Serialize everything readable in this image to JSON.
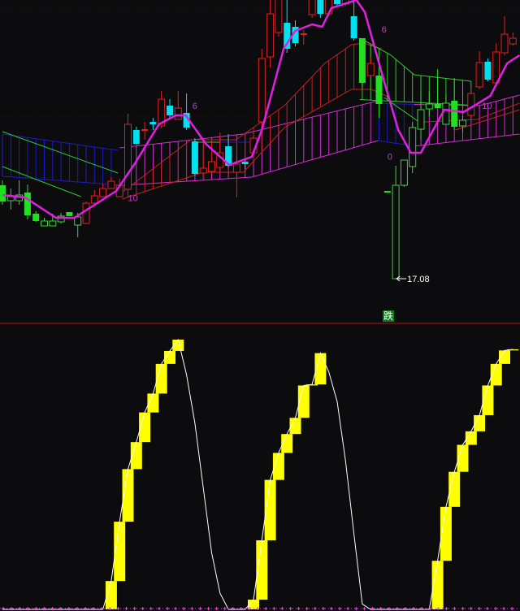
{
  "chart_data": [
    {
      "type": "candlestick",
      "title": "",
      "price_range": [
        17.0,
        30.8
      ],
      "candle_kinds": {
        "r": "red hollow (up)",
        "c": "cyan filled (down)",
        "g": "green filled (down)",
        "gh": "green hollow (up)"
      },
      "candles": [
        [
          21.68,
          21.92,
          20.72,
          20.88,
          "g"
        ],
        [
          20.92,
          21.52,
          20.48,
          21.12,
          "gh"
        ],
        [
          20.92,
          21.92,
          20.72,
          21.2,
          "gh"
        ],
        [
          21.32,
          21.72,
          20.0,
          20.2,
          "g"
        ],
        [
          20.28,
          20.4,
          19.88,
          19.92,
          "g"
        ],
        [
          19.68,
          20.08,
          19.68,
          19.92,
          "gh"
        ],
        [
          19.68,
          20.28,
          19.68,
          19.92,
          "gh"
        ],
        [
          19.88,
          20.32,
          19.8,
          20.16,
          "gh"
        ],
        [
          20.36,
          20.36,
          20.16,
          20.16,
          "g"
        ],
        [
          19.72,
          20.32,
          19.12,
          20.12,
          "gh"
        ],
        [
          19.8,
          20.88,
          19.76,
          20.8,
          "r"
        ],
        [
          20.8,
          21.44,
          20.8,
          21.16,
          "r"
        ],
        [
          21.12,
          21.76,
          21.12,
          21.52,
          "r"
        ],
        [
          21.52,
          22.08,
          21.52,
          21.88,
          "r"
        ],
        [
          21.12,
          22.0,
          21.12,
          21.68,
          "r"
        ],
        [
          21.48,
          25.2,
          21.28,
          24.68,
          "r"
        ],
        [
          24.4,
          24.56,
          23.68,
          23.72,
          "c"
        ],
        [
          24.36,
          24.8,
          23.92,
          24.4,
          "r"
        ],
        [
          24.8,
          25.0,
          24.4,
          24.68,
          "c"
        ],
        [
          24.6,
          26.32,
          24.48,
          25.92,
          "r"
        ],
        [
          25.6,
          25.92,
          24.96,
          25.12,
          "c"
        ],
        [
          24.92,
          26.32,
          24.92,
          25.48,
          "r"
        ],
        [
          25.24,
          26.2,
          24.4,
          24.52,
          "c"
        ],
        [
          23.84,
          24.0,
          22.16,
          22.24,
          "c"
        ],
        [
          22.28,
          22.6,
          22.08,
          22.52,
          "r"
        ],
        [
          22.36,
          23.0,
          22.28,
          22.84,
          "r"
        ],
        [
          22.56,
          24.28,
          22.4,
          23.28,
          "r"
        ],
        [
          23.6,
          24.2,
          22.56,
          22.64,
          "c"
        ],
        [
          22.32,
          23.12,
          21.08,
          22.72,
          "r"
        ],
        [
          22.84,
          23.0,
          22.48,
          22.72,
          "c"
        ],
        [
          23.28,
          24.32,
          23.2,
          24.0,
          "r"
        ],
        [
          24.8,
          28.4,
          24.52,
          27.92,
          "r"
        ],
        [
          28.0,
          30.8,
          27.48,
          30.12,
          "r"
        ],
        [
          29.2,
          31.5,
          29.0,
          31.0,
          "r"
        ],
        [
          29.68,
          30.8,
          28.2,
          28.4,
          "c"
        ],
        [
          29.48,
          29.8,
          28.52,
          28.68,
          "c"
        ],
        [
          29.08,
          29.32,
          28.6,
          29.12,
          "r"
        ],
        [
          30.08,
          31.5,
          29.92,
          31.0,
          "r"
        ],
        [
          31.0,
          31.5,
          29.92,
          30.12,
          "c"
        ],
        [
          30.12,
          31.5,
          30.0,
          31.2,
          "r"
        ],
        [
          31.2,
          31.5,
          30.5,
          30.6,
          "c"
        ],
        [
          30.6,
          31.5,
          30.5,
          31.0,
          "r"
        ],
        [
          30.0,
          31.0,
          28.8,
          28.92,
          "c"
        ],
        [
          28.92,
          28.92,
          26.52,
          26.72,
          "g"
        ],
        [
          27.08,
          28.0,
          27.0,
          27.68,
          "r"
        ],
        [
          27.08,
          27.48,
          25.0,
          25.68,
          "g"
        ],
        [
          21.36,
          21.4,
          21.32,
          21.36,
          "g"
        ],
        [
          17.08,
          22.64,
          17.08,
          21.68,
          "gh"
        ],
        [
          21.68,
          22.92,
          21.6,
          22.92,
          "gh"
        ],
        [
          22.6,
          24.8,
          22.28,
          24.52,
          "gh"
        ],
        [
          24.44,
          26.28,
          23.92,
          25.4,
          "gh"
        ],
        [
          25.44,
          26.28,
          25.08,
          25.68,
          "gh"
        ],
        [
          25.68,
          27.4,
          25.48,
          25.48,
          "g"
        ],
        [
          24.68,
          26.12,
          24.68,
          25.72,
          "gh"
        ],
        [
          25.84,
          26.96,
          24.4,
          24.56,
          "g"
        ],
        [
          24.6,
          25.08,
          24.28,
          24.88,
          "gh"
        ],
        [
          25.12,
          26.4,
          25.0,
          26.2,
          "r"
        ],
        [
          26.52,
          28.28,
          26.4,
          27.72,
          "r"
        ],
        [
          27.76,
          27.92,
          26.8,
          26.88,
          "c"
        ],
        [
          26.72,
          28.68,
          26.72,
          28.24,
          "r"
        ],
        [
          28.2,
          30.0,
          28.08,
          29.12,
          "r"
        ],
        [
          28.64,
          29.2,
          28.56,
          28.92,
          "r"
        ]
      ],
      "ribbons": [
        {
          "color": "#1c1cc8",
          "top": [
            [
              0,
              24.2
            ],
            [
              13.8,
              23.4
            ]
          ],
          "bottom": [
            [
              0,
              22.12
            ],
            [
              14.3,
              21.68
            ]
          ]
        },
        {
          "color": "#d030d0",
          "top": [
            [
              14,
              23.52
            ],
            [
              28.8,
              24.2
            ],
            [
              44.9,
              25.84
            ]
          ],
          "bottom": [
            [
              14.3,
              21.68
            ],
            [
              29.8,
              22.08
            ],
            [
              44.9,
              23.88
            ]
          ]
        },
        {
          "color": "#1c1cc8",
          "top": [
            [
              44.9,
              25.72
            ],
            [
              49.2,
              25.66
            ]
          ],
          "bottom": [
            [
              44.9,
              23.88
            ],
            [
              49.2,
              23.6
            ]
          ]
        },
        {
          "color": "#d030d0",
          "top": [
            [
              49.2,
              25.66
            ],
            [
              57,
              25.6
            ],
            [
              61.8,
              26.12
            ]
          ],
          "bottom": [
            [
              49.2,
              23.6
            ],
            [
              61.8,
              24.2
            ]
          ]
        },
        {
          "color": "#c82020",
          "top": [
            [
              14.3,
              21.32
            ],
            [
              22.5,
              23.92
            ],
            [
              27.9,
              23.92
            ],
            [
              33.7,
              25.6
            ],
            [
              38.5,
              27.68
            ],
            [
              41.7,
              28.6
            ],
            [
              43.1,
              28.68
            ],
            [
              45.3,
              28.4
            ]
          ],
          "bottom": [
            [
              14.3,
              21.0
            ],
            [
              24,
              22.32
            ],
            [
              28.8,
              22.32
            ],
            [
              33.7,
              24.52
            ],
            [
              41.7,
              26.4
            ],
            [
              44.1,
              26.4
            ],
            [
              46.3,
              26.0
            ]
          ]
        },
        {
          "color": "#30c830",
          "top": [
            [
              42.7,
              28.92
            ],
            [
              46.3,
              28.12
            ],
            [
              49.2,
              27.12
            ],
            [
              56,
              26.8
            ]
          ],
          "bottom": [
            [
              42.7,
              25.9
            ],
            [
              56,
              25.62
            ]
          ]
        }
      ],
      "lines": [
        {
          "color": "#30c830",
          "width": 1,
          "points": [
            [
              0,
              24.32
            ],
            [
              13.8,
              22.28
            ]
          ]
        },
        {
          "color": "#30c830",
          "width": 1,
          "points": [
            [
              0,
              22.6
            ],
            [
              9.4,
              21.12
            ]
          ]
        },
        {
          "color": "#30c830",
          "width": 1,
          "points": [
            [
              23,
              23.8
            ],
            [
              26,
              23.8
            ]
          ]
        },
        {
          "color": "#1c1cc8",
          "width": 1,
          "points": [
            [
              26,
              23.8
            ],
            [
              29.5,
              23.8
            ]
          ]
        },
        {
          "color": "#30c830",
          "width": 1,
          "points": [
            [
              45.6,
              26.0
            ],
            [
              49.5,
              24.88
            ],
            [
              50.5,
              24.8
            ]
          ]
        },
        {
          "color": "#c82020",
          "width": 1,
          "points": [
            [
              50.5,
              24.8
            ],
            [
              56.7,
              24.92
            ],
            [
              61.8,
              25.72
            ]
          ]
        },
        {
          "color": "#c82020",
          "width": 1,
          "points": [
            [
              54.1,
              24.4
            ],
            [
              61.8,
              25.4
            ]
          ]
        },
        {
          "color": "#e020e0",
          "width": 2.5,
          "points": [
            [
              0,
              21.2
            ],
            [
              2.7,
              21.08
            ],
            [
              6.4,
              20.08
            ],
            [
              8.6,
              20.08
            ],
            [
              13.6,
              21.4
            ],
            [
              15.9,
              22.8
            ],
            [
              18.7,
              24.68
            ],
            [
              20.7,
              25.12
            ],
            [
              21.9,
              25.12
            ],
            [
              24.3,
              23.72
            ],
            [
              27.1,
              22.68
            ],
            [
              29.8,
              23.08
            ],
            [
              31,
              24.4
            ],
            [
              33.6,
              28.4
            ],
            [
              35,
              29.28
            ],
            [
              37,
              29.6
            ],
            [
              38.2,
              29.48
            ],
            [
              39.3,
              30.4
            ],
            [
              42.3,
              30.8
            ],
            [
              43.3,
              30.2
            ],
            [
              45.6,
              26.8
            ],
            [
              47.3,
              24.4
            ],
            [
              48.8,
              23.28
            ],
            [
              50,
              23.28
            ],
            [
              52.8,
              25.4
            ],
            [
              55.1,
              25.28
            ],
            [
              56.4,
              25.6
            ],
            [
              58.3,
              26.08
            ],
            [
              60.3,
              27.68
            ],
            [
              61.8,
              28.08
            ]
          ]
        }
      ],
      "annotations": [
        {
          "text": "6",
          "i": 45.3,
          "p": 29.2,
          "color": "#c040c0"
        },
        {
          "text": "6",
          "i": 22.7,
          "p": 25.45,
          "color": "#c040c0"
        },
        {
          "text": "10",
          "i": 15.0,
          "p": 20.9,
          "color": "#c040c0"
        },
        {
          "text": "0",
          "i": 46.0,
          "p": 22.95,
          "color": "#c040c0"
        },
        {
          "text": "10",
          "i": 57.3,
          "p": 25.45,
          "color": "#c040c0"
        }
      ],
      "low_marker": {
        "text": "17.08",
        "i": 47,
        "p": 17.08
      }
    },
    {
      "type": "bar",
      "title": "",
      "ylim": [
        0,
        100
      ],
      "values": [
        0,
        0,
        0,
        0,
        0,
        0,
        0,
        0,
        0,
        0,
        0,
        0,
        0,
        10.5,
        32.5,
        52,
        62,
        73,
        80,
        91,
        95.8,
        100,
        87,
        69,
        45,
        21,
        6,
        0,
        0,
        0,
        3.6,
        25.6,
        48,
        58,
        65,
        71,
        83,
        83.4,
        95,
        88,
        77,
        55,
        28,
        2,
        0,
        0,
        0,
        0,
        0,
        0,
        0,
        0,
        18,
        38,
        51,
        61,
        66,
        72,
        83,
        91,
        96,
        96.4
      ],
      "rise_color": "#ffff00",
      "line_color": "#ffffff"
    }
  ],
  "signal_label": "跌",
  "colors": {
    "background": "#0c0b0e",
    "up": "#e02020",
    "down_cyan": "#00e0f0",
    "down_green": "#20e020",
    "separator": "#b01818"
  }
}
